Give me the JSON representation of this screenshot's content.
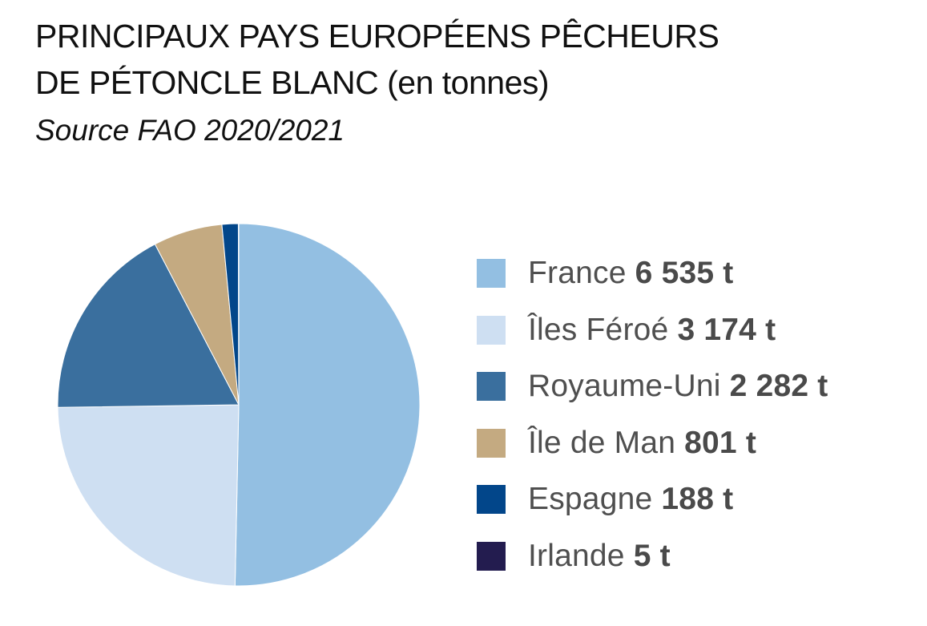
{
  "title": {
    "line1": "PRINCIPAUX PAYS EUROPÉENS PÊCHEURS",
    "line2_main": "DE PÉTONCLE BLANC",
    "line2_unit": "(en tonnes)"
  },
  "subtitle": "Source FAO 2020/2021",
  "chart_data": {
    "type": "pie",
    "title": "PRINCIPAUX PAYS EUROPÉENS PÊCHEURS DE PÉTONCLE BLANC (en tonnes)",
    "subtitle": "Source FAO 2020/2021",
    "unit": "t",
    "legend_position": "right",
    "start_angle": "top, clockwise",
    "slices": [
      {
        "label": "France",
        "value": 6535,
        "value_label": "6 535 t",
        "color": "#93bfe2"
      },
      {
        "label": "Îles Féroé",
        "value": 3174,
        "value_label": "3 174 t",
        "color": "#cedff2"
      },
      {
        "label": "Royaume-Uni",
        "value": 2282,
        "value_label": "2 282 t",
        "color": "#3a6f9e"
      },
      {
        "label": "Île de Man",
        "value": 801,
        "value_label": "801 t",
        "color": "#c4aa81"
      },
      {
        "label": "Espagne",
        "value": 188,
        "value_label": "188 t",
        "color": "#02468a"
      },
      {
        "label": "Irlande",
        "value": 5,
        "value_label": "5 t",
        "color": "#231c4f"
      }
    ]
  }
}
